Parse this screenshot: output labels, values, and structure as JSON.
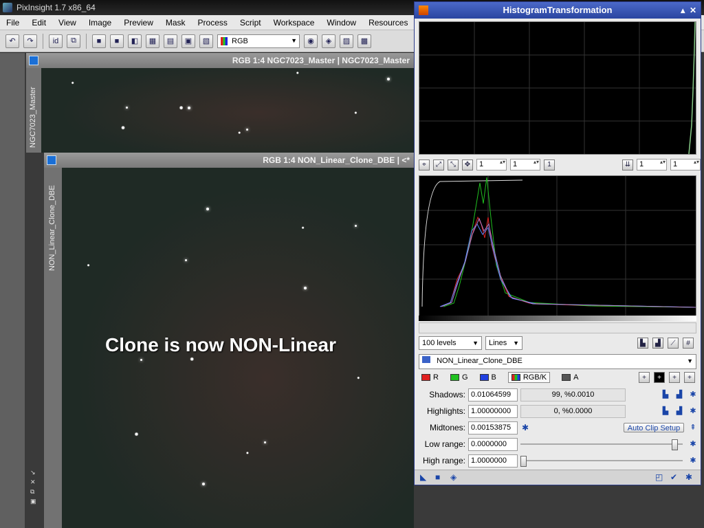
{
  "app": {
    "title": "PixInsight 1.7 x86_64"
  },
  "menu": [
    "File",
    "Edit",
    "View",
    "Image",
    "Preview",
    "Mask",
    "Process",
    "Script",
    "Workspace",
    "Window",
    "Resources"
  ],
  "toolbar": {
    "rgb_mode": "RGB"
  },
  "windows": {
    "master": {
      "title": "RGB 1:4 NGC7023_Master | NGC7023_Master",
      "tab": "NGC7023_Master"
    },
    "clone": {
      "title": "RGB 1:4 NON_Linear_Clone_DBE | <*",
      "tab": "NON_Linear_Clone_DBE"
    }
  },
  "overlay_text": "Clone is now NON-Linear",
  "histogram": {
    "title": "HistogramTransformation",
    "zoom": {
      "h": "1",
      "v": "1",
      "h2": "1",
      "v2": "1"
    },
    "levels": "100 levels",
    "graph_style": "Lines",
    "view": "NON_Linear_Clone_DBE",
    "channels": {
      "r": "R",
      "g": "G",
      "b": "B",
      "rgbk": "RGB/K",
      "a": "A"
    },
    "shadows": {
      "label": "Shadows:",
      "value": "0.01064599",
      "info": "99, %0.0010"
    },
    "highlights": {
      "label": "Highlights:",
      "value": "1.00000000",
      "info": "0, %0.0000"
    },
    "midtones": {
      "label": "Midtones:",
      "value": "0.00153875"
    },
    "auto_clip": "Auto Clip Setup",
    "low_range": {
      "label": "Low range:",
      "value": "0.0000000",
      "fraction": 0.97
    },
    "high_range": {
      "label": "High range:",
      "value": "1.0000000",
      "fraction": 0.0
    }
  },
  "colors": {
    "title_blue": "#3352b4",
    "red": "#e02020",
    "green": "#20c020",
    "blue": "#2040e0"
  }
}
